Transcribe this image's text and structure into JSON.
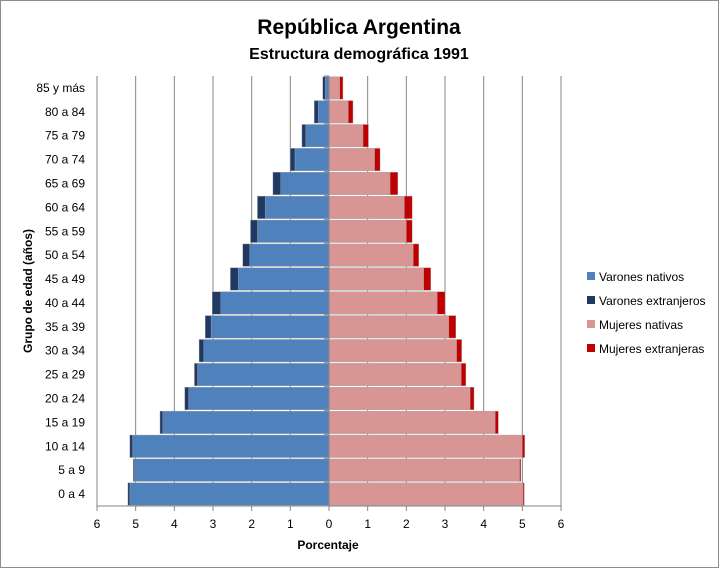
{
  "chart_data": {
    "type": "bar",
    "orientation": "horizontal",
    "subtype": "population-pyramid",
    "title": "República Argentina",
    "subtitle": "Estructura demográfica 1991",
    "xlabel": "Porcentaje",
    "ylabel": "Grupo de edad (años)",
    "xlim": [
      -6,
      6
    ],
    "x_ticks": [
      "6",
      "5",
      "4",
      "3",
      "2",
      "1",
      "0",
      "1",
      "2",
      "3",
      "4",
      "5",
      "6"
    ],
    "grid": "vertical",
    "legend_position": "right",
    "categories": [
      "0 a 4",
      "5 a 9",
      "10 a 14",
      "15 a 19",
      "20 a 24",
      "25 a 29",
      "30 a 34",
      "35 a 39",
      "40 a 44",
      "45 a 49",
      "50 a 54",
      "55 a 59",
      "60 a 64",
      "65 a 69",
      "70 a 74",
      "75 a 79",
      "80 a 84",
      "85 y más"
    ],
    "series": [
      {
        "name": "Varones nativos",
        "side": "left",
        "color": "#4f81bd",
        "values": [
          5.15,
          5.03,
          5.08,
          4.3,
          3.63,
          3.4,
          3.24,
          3.05,
          2.8,
          2.35,
          2.05,
          1.85,
          1.65,
          1.25,
          0.88,
          0.6,
          0.28,
          0.1
        ]
      },
      {
        "name": "Varones extranjeros",
        "side": "left",
        "color": "#1f3864",
        "values": [
          0.05,
          0.03,
          0.07,
          0.07,
          0.1,
          0.08,
          0.12,
          0.15,
          0.22,
          0.2,
          0.18,
          0.18,
          0.2,
          0.2,
          0.12,
          0.1,
          0.1,
          0.06
        ]
      },
      {
        "name": "Mujeres nativas",
        "side": "right",
        "color": "#d99594",
        "values": [
          5.02,
          4.93,
          5.0,
          4.3,
          3.65,
          3.42,
          3.3,
          3.1,
          2.8,
          2.45,
          2.18,
          2.0,
          1.95,
          1.58,
          1.18,
          0.88,
          0.5,
          0.28
        ]
      },
      {
        "name": "Mujeres extranjeras",
        "side": "right",
        "color": "#c00000",
        "values": [
          0.03,
          0.03,
          0.06,
          0.08,
          0.1,
          0.12,
          0.13,
          0.18,
          0.2,
          0.18,
          0.14,
          0.15,
          0.2,
          0.2,
          0.14,
          0.14,
          0.12,
          0.08
        ]
      }
    ]
  }
}
